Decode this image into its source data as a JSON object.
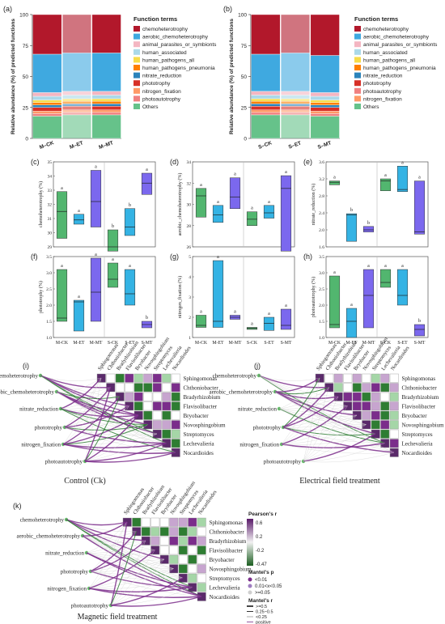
{
  "panel_labels": [
    "(a)",
    "(b)",
    "(c)",
    "(d)",
    "(e)",
    "(f)",
    "(g)",
    "(h)",
    "(i)",
    "(j)",
    "(k)"
  ],
  "stacked_colors": [
    "#b2182b",
    "#3fa9e0",
    "#f4b6c2",
    "#abd9e9",
    "#f7dc4a",
    "#ff7f00",
    "#2b83ba",
    "#d73027",
    "#f08080",
    "#ff9966",
    "#66c2a4",
    "#66c28a"
  ],
  "chart_data": [
    {
      "id": "a",
      "type": "bar",
      "stacked": true,
      "categories": [
        "M–CK",
        "M–ET",
        "M–MT"
      ],
      "ylabel": "Relative abundance (%) of predicted functions",
      "ylim": [
        0,
        100
      ],
      "yticks": [
        "0",
        "25",
        "50",
        "75",
        "100"
      ],
      "legend_title": "Function terms",
      "series": [
        {
          "name": "Others",
          "values": [
            18,
            19,
            19
          ]
        },
        {
          "name": "photoautotrophy",
          "values": [
            2,
            2,
            2
          ]
        },
        {
          "name": "nitrogen_fixation",
          "values": [
            2,
            2,
            2
          ]
        },
        {
          "name": "phototrophy",
          "values": [
            3,
            3,
            3
          ]
        },
        {
          "name": "nitrate_reduction",
          "values": [
            2,
            2,
            2
          ]
        },
        {
          "name": "human_pathogens_pneumonia",
          "values": [
            2,
            2,
            2
          ]
        },
        {
          "name": "human_pathogens_all",
          "values": [
            2,
            2,
            2
          ]
        },
        {
          "name": "human_associated",
          "values": [
            3,
            3,
            3
          ]
        },
        {
          "name": "animal_parasites_or_symbionts",
          "values": [
            3,
            3,
            3
          ]
        },
        {
          "name": "aerobic_chemoheterotrophy",
          "values": [
            31,
            31,
            31
          ]
        },
        {
          "name": "chemoheterotrophy",
          "values": [
            32,
            31,
            31
          ]
        }
      ]
    },
    {
      "id": "b",
      "type": "bar",
      "stacked": true,
      "categories": [
        "S–CK",
        "S–ET",
        "S–MT"
      ],
      "ylabel": "Relative abundance (%) of predicted functions",
      "ylim": [
        0,
        100
      ],
      "yticks": [
        "0",
        "25",
        "50",
        "75",
        "100"
      ],
      "legend_title": "Function terms",
      "series": [
        {
          "name": "Others",
          "values": [
            19,
            19,
            18
          ]
        },
        {
          "name": "photoautotrophy",
          "values": [
            2,
            2,
            2
          ]
        },
        {
          "name": "nitrogen_fixation",
          "values": [
            2,
            2,
            2
          ]
        },
        {
          "name": "phototrophy",
          "values": [
            3,
            3,
            3
          ]
        },
        {
          "name": "nitrate_reduction",
          "values": [
            2,
            2,
            2
          ]
        },
        {
          "name": "human_pathogens_pneumonia",
          "values": [
            2,
            2,
            2
          ]
        },
        {
          "name": "human_pathogens_all",
          "values": [
            2,
            2,
            2
          ]
        },
        {
          "name": "human_associated",
          "values": [
            3,
            3,
            3
          ]
        },
        {
          "name": "animal_parasites_or_symbionts",
          "values": [
            3,
            3,
            3
          ]
        },
        {
          "name": "aerobic_chemoheterotrophy",
          "values": [
            30,
            31,
            30
          ]
        },
        {
          "name": "chemoheterotrophy",
          "values": [
            32,
            31,
            33
          ]
        }
      ]
    },
    {
      "id": "c",
      "type": "box",
      "ylabel": "chemoheterotrophy (%)",
      "ylim": [
        29,
        35
      ],
      "yticks": [
        29,
        30,
        31,
        32,
        33,
        34,
        35
      ],
      "boxes": [
        {
          "q1": 29.6,
          "med": 31.5,
          "q3": 32.9,
          "label": "a"
        },
        {
          "q1": 30.6,
          "med": 30.9,
          "q3": 31.3,
          "label": "a"
        },
        {
          "q1": 30.4,
          "med": 32.2,
          "q3": 34.4,
          "label": "a"
        },
        {
          "q1": 28.7,
          "med": 29.0,
          "q3": 30.2,
          "label": "b"
        },
        {
          "q1": 29.8,
          "med": 30.4,
          "q3": 31.7,
          "label": "b"
        },
        {
          "q1": 32.7,
          "med": 33.5,
          "q3": 34.2,
          "label": "a"
        }
      ]
    },
    {
      "id": "d",
      "type": "box",
      "ylabel": "aerobic_chemoheterotrophy (%)",
      "ylim": [
        26,
        34
      ],
      "yticks": [
        26,
        28,
        30,
        32,
        34
      ],
      "boxes": [
        {
          "q1": 28.8,
          "med": 30.8,
          "q3": 31.5,
          "label": "a"
        },
        {
          "q1": 28.3,
          "med": 29.0,
          "q3": 29.9,
          "label": "a"
        },
        {
          "q1": 29.6,
          "med": 30.7,
          "q3": 32.5,
          "label": "a"
        },
        {
          "q1": 28.0,
          "med": 28.6,
          "q3": 29.3,
          "label": "a"
        },
        {
          "q1": 28.7,
          "med": 29.2,
          "q3": 29.9,
          "label": "a"
        },
        {
          "q1": 25.6,
          "med": 31.5,
          "q3": 32.7,
          "label": "a"
        }
      ]
    },
    {
      "id": "e",
      "type": "box",
      "ylabel": "nitrate_reduction (%)",
      "ylim": [
        1.6,
        3.6
      ],
      "yticks": [
        "1.6",
        "2.0",
        "2.4",
        "2.8",
        "3.2",
        "3.6"
      ],
      "boxes": [
        {
          "q1": 3.06,
          "med": 3.12,
          "q3": 3.15,
          "label": "a"
        },
        {
          "q1": 1.73,
          "med": 2.35,
          "q3": 2.38,
          "label": "b"
        },
        {
          "q1": 1.95,
          "med": 2.0,
          "q3": 2.08,
          "label": "b"
        },
        {
          "q1": 2.92,
          "med": 3.15,
          "q3": 3.2,
          "label": "a"
        },
        {
          "q1": 2.9,
          "med": 2.95,
          "q3": 3.5,
          "label": "a"
        },
        {
          "q1": 1.9,
          "med": 1.95,
          "q3": 3.15,
          "label": "a"
        }
      ]
    },
    {
      "id": "f",
      "type": "box",
      "ylabel": "phototrophy (%)",
      "ylim": [
        1.0,
        3.5
      ],
      "yticks": [
        "1.0",
        "1.5",
        "2.0",
        "2.5",
        "3.0",
        "3.5"
      ],
      "boxes": [
        {
          "q1": 1.5,
          "med": 1.6,
          "q3": 3.1,
          "label": "a"
        },
        {
          "q1": 1.2,
          "med": 2.1,
          "q3": 2.15,
          "label": "a"
        },
        {
          "q1": 1.5,
          "med": 2.4,
          "q3": 3.45,
          "label": "a"
        },
        {
          "q1": 2.55,
          "med": 2.8,
          "q3": 3.3,
          "label": "a"
        },
        {
          "q1": 2.0,
          "med": 2.35,
          "q3": 3.1,
          "label": "a"
        },
        {
          "q1": 1.3,
          "med": 1.4,
          "q3": 1.5,
          "label": "b"
        }
      ]
    },
    {
      "id": "g",
      "type": "box",
      "ylabel": "nitrogen_fixation (%)",
      "ylim": [
        1,
        5
      ],
      "yticks": [
        1,
        2,
        3,
        4,
        5
      ],
      "boxes": [
        {
          "q1": 1.5,
          "med": 1.6,
          "q3": 2.1,
          "label": "a"
        },
        {
          "q1": 1.5,
          "med": 1.8,
          "q3": 4.8,
          "label": "a"
        },
        {
          "q1": 1.9,
          "med": 2.0,
          "q3": 2.1,
          "label": "a"
        },
        {
          "q1": 1.4,
          "med": 1.45,
          "q3": 1.5,
          "label": "a"
        },
        {
          "q1": 1.35,
          "med": 1.7,
          "q3": 2.0,
          "label": "a"
        },
        {
          "q1": 1.4,
          "med": 1.6,
          "q3": 2.4,
          "label": "a"
        }
      ]
    },
    {
      "id": "h",
      "type": "box",
      "ylabel": "photoautotrophy (%)",
      "ylim": [
        1.0,
        3.5
      ],
      "yticks": [
        "1.0",
        "1.5",
        "2.0",
        "2.5",
        "3.0",
        "3.5"
      ],
      "boxes": [
        {
          "q1": 1.3,
          "med": 1.4,
          "q3": 2.9,
          "label": "a"
        },
        {
          "q1": 1.0,
          "med": 1.5,
          "q3": 1.9,
          "label": "a"
        },
        {
          "q1": 1.3,
          "med": 2.3,
          "q3": 3.1,
          "label": "a"
        },
        {
          "q1": 2.55,
          "med": 2.7,
          "q3": 3.1,
          "label": "a"
        },
        {
          "q1": 2.0,
          "med": 2.3,
          "q3": 3.1,
          "label": "a"
        },
        {
          "q1": 1.05,
          "med": 1.25,
          "q3": 1.4,
          "label": "b"
        }
      ]
    }
  ],
  "box_categories": [
    "M-CK",
    "M-ET",
    "M-MT",
    "S-CK",
    "S-ET",
    "S-MT"
  ],
  "box_colors": [
    "#52b66f",
    "#34b3e4",
    "#7b68ee",
    "#52b66f",
    "#34b3e4",
    "#7b68ee"
  ],
  "heatmaps": {
    "genera": [
      "Sphingomonas",
      "Chthoniobacter",
      "Bradyrhizobium",
      "Flavisolibacter",
      "Bryobacter",
      "Novosphingobium",
      "Streptomyces",
      "Lechevalieria",
      "Nocardioides"
    ],
    "functions": [
      "chemoheterotrophy",
      "aerobic_chemoheterotrophy",
      "nitrate_reduction",
      "phototrophy",
      "nitrogen_fixation",
      "photoautotrophy"
    ],
    "titles": {
      "i": "Control (Ck)",
      "j": "Electrical field treatment",
      "k": "Magnetic field treatment"
    }
  },
  "legend_k": {
    "pearson_title": "Pearson's r",
    "pearson_ticks": [
      "0.6",
      "0.2",
      "-0.2",
      "-0.47"
    ],
    "mantel_p_title": "Mantel's p",
    "mantel_p_items": [
      "<0.01",
      "0.01<x<0.05",
      ">=0.05"
    ],
    "mantel_r_title": "Mantel's r",
    "mantel_r_items": [
      ">=0.5",
      "0.25~0.5",
      "<0.25",
      "positive",
      "negative"
    ]
  }
}
